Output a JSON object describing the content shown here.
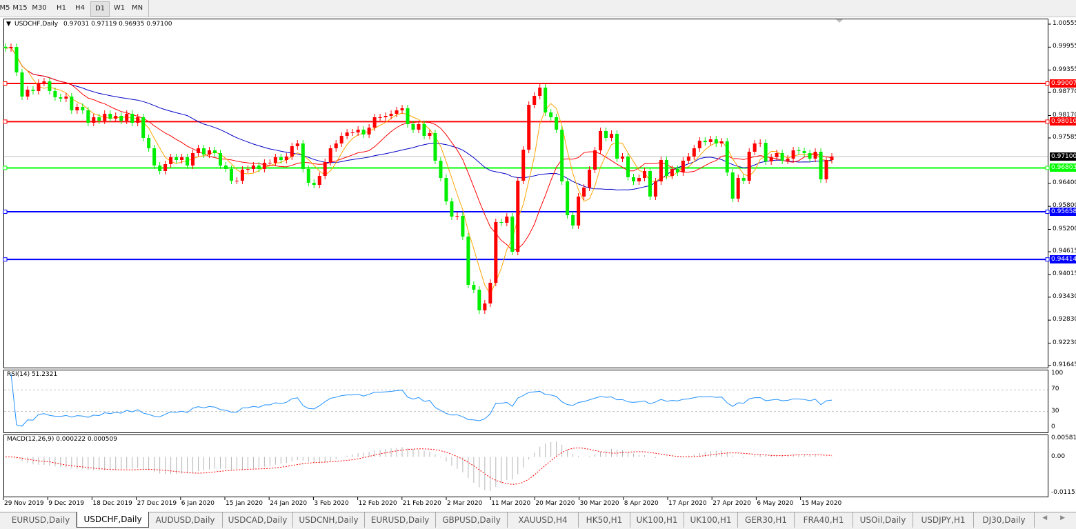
{
  "timeframes": [
    {
      "label": "M5",
      "active": false
    },
    {
      "label": "M15",
      "active": false
    },
    {
      "label": "M30",
      "active": false
    },
    {
      "label": "H1",
      "active": false
    },
    {
      "label": "H4",
      "active": false
    },
    {
      "label": "D1",
      "active": true
    },
    {
      "label": "W1",
      "active": false
    },
    {
      "label": "MN",
      "active": false
    }
  ],
  "chart_header": {
    "symbol": "USDCHF,Daily",
    "ohlc": "0.97031 0.97119 0.96935 0.97100"
  },
  "colors": {
    "bull": "#ff0000",
    "bear": "#00ee00",
    "ma_fast": "#ffa500",
    "ma_mid": "#ff0000",
    "ma_slow": "#0000c8",
    "rsi": "#1e90ff",
    "macd_hist": "#b4b4b4",
    "macd_signal": "#ff0000"
  },
  "chart_data": {
    "type": "candlestick",
    "symbol": "USDCHF",
    "timeframe": "Daily",
    "ylim": [
      0.91645,
      1.00555
    ],
    "y_ticks": [
      "1.00555",
      "0.99955",
      "0.99355",
      "0.98770",
      "0.98170",
      "0.97585",
      "0.96400",
      "0.95800",
      "0.95200",
      "0.94615",
      "0.94015",
      "0.93430",
      "0.92830",
      "0.92230",
      "0.91645"
    ],
    "x_ticks": [
      "29 Nov 2019",
      "9 Dec 2019",
      "18 Dec 2019",
      "27 Dec 2019",
      "6 Jan 2020",
      "15 Jan 2020",
      "24 Jan 2020",
      "3 Feb 2020",
      "12 Feb 2020",
      "21 Feb 2020",
      "2 Mar 2020",
      "11 Mar 2020",
      "20 Mar 2020",
      "30 Mar 2020",
      "8 Apr 2020",
      "17 Apr 2020",
      "27 Apr 2020",
      "6 May 2020",
      "15 May 2020"
    ],
    "close": [
      0.99925,
      0.99961,
      0.99295,
      0.98665,
      0.98845,
      0.98809,
      0.99025,
      0.99061,
      0.98809,
      0.98647,
      0.98611,
      0.98665,
      0.98305,
      0.98395,
      0.98305,
      0.97981,
      0.98125,
      0.98035,
      0.98215,
      0.98089,
      0.98161,
      0.98035,
      0.98215,
      0.97981,
      0.98125,
      0.97585,
      0.97315,
      0.96865,
      0.96721,
      0.96901,
      0.97081,
      0.97009,
      0.97081,
      0.96865,
      0.97189,
      0.97315,
      0.97153,
      0.97261,
      0.97189,
      0.96865,
      0.96775,
      0.96469,
      0.96469,
      0.96757,
      0.96775,
      0.96865,
      0.96775,
      0.96937,
      0.96937,
      0.97081,
      0.97009,
      0.97099,
      0.97369,
      0.97441,
      0.96775,
      0.96415,
      0.96361,
      0.96595,
      0.96955,
      0.97315,
      0.97441,
      0.97639,
      0.97729,
      0.97729,
      0.97801,
      0.97675,
      0.97855,
      0.98125,
      0.98125,
      0.98161,
      0.98215,
      0.98305,
      0.98359,
      0.97945,
      0.97801,
      0.97945,
      0.97639,
      0.97711,
      0.96991,
      0.96541,
      0.95929,
      0.95533,
      0.95551,
      0.95011,
      0.93751,
      0.93625,
      0.93085,
      0.93265,
      0.93805,
      0.95389,
      0.95371,
      0.95533,
      0.94615,
      0.96469,
      0.97279,
      0.98449,
      0.98683,
      0.98899,
      0.98251,
      0.98125,
      0.97801,
      0.96451,
      0.95569,
      0.95299,
      0.96055,
      0.96289,
      0.96757,
      0.97261,
      0.97765,
      0.97585,
      0.97693,
      0.97045,
      0.97099,
      0.96559,
      0.96451,
      0.96541,
      0.96721,
      0.96055,
      0.96451,
      0.97009,
      0.96595,
      0.96775,
      0.96685,
      0.96991,
      0.97099,
      0.97315,
      0.97513,
      0.97477,
      0.97549,
      0.97441,
      0.97495,
      0.96685,
      0.96001,
      0.96541,
      0.96469,
      0.97225,
      0.97441,
      0.97459,
      0.96973,
      0.97081,
      0.97189,
      0.96991,
      0.97045,
      0.97261,
      0.97243,
      0.97189,
      0.97045,
      0.97225,
      0.96505,
      0.97009,
      0.971
    ],
    "horizontal_levels": [
      {
        "price": "0.99007",
        "color": "#ff0000"
      },
      {
        "price": "0.98010",
        "color": "#ff0000"
      },
      {
        "price": "0.96803",
        "color": "#00ff00"
      },
      {
        "price": "0.95658",
        "color": "#0000ff"
      },
      {
        "price": "0.94414",
        "color": "#0000ff"
      }
    ],
    "current_price": "0.97100",
    "rsi": {
      "label": "RSI(14) 51.2321",
      "period": 14,
      "ticks": [
        "100",
        "70",
        "30",
        "0"
      ],
      "levels": [
        70,
        30
      ]
    },
    "macd": {
      "label": "MACD(12,26,9) 0.000222 0.000509",
      "ticks": [
        "0.005818",
        "0.00",
        "-0.01151"
      ],
      "range": [
        -0.01151,
        0.005818
      ]
    }
  },
  "tabs": [
    {
      "label": "EURUSD,Daily",
      "active": false
    },
    {
      "label": "USDCHF,Daily",
      "active": true
    },
    {
      "label": "AUDUSD,Daily",
      "active": false
    },
    {
      "label": "USDCAD,Daily",
      "active": false
    },
    {
      "label": "USDCNH,Daily",
      "active": false
    },
    {
      "label": "EURUSD,Daily",
      "active": false
    },
    {
      "label": "GBPUSD,Daily",
      "active": false
    },
    {
      "label": "XAUUSD,H4",
      "active": false
    },
    {
      "label": "HK50,H1",
      "active": false
    },
    {
      "label": "UK100,H1",
      "active": false
    },
    {
      "label": "UK100,H1",
      "active": false
    },
    {
      "label": "GER30,H1",
      "active": false
    },
    {
      "label": "FRA40,H1",
      "active": false
    },
    {
      "label": "USOil,Daily",
      "active": false
    },
    {
      "label": "USDJPY,H1",
      "active": false
    },
    {
      "label": "DJ30,Daily",
      "active": false
    }
  ],
  "tab_scroll": "◀ ▶"
}
